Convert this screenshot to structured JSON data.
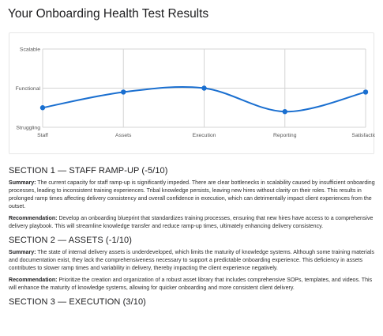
{
  "page": {
    "title": "Your Onboarding Health Test Results"
  },
  "colors": {
    "line": "#1a6fd0",
    "grid": "#d4d4d4",
    "axis_text": "#555555"
  },
  "chart_data": {
    "type": "line",
    "categories": [
      "Staff",
      "Assets",
      "Execution",
      "Reporting",
      "Satisfaction"
    ],
    "y_levels": [
      "Struggling",
      "Functional",
      "Scalable"
    ],
    "values": [
      0.5,
      0.9,
      1.0,
      0.4,
      0.9
    ],
    "ylim": [
      0,
      2
    ],
    "grid": true,
    "xlabel": "",
    "ylabel": "",
    "title": ""
  },
  "sections": [
    {
      "heading": "SECTION 1 — STAFF RAMP-UP (-5/10)",
      "summary_label": "Summary:",
      "summary": " The current capacity for staff ramp-up is significantly impeded. There are clear bottlenecks in scalability caused by insufficient onboarding processes, leading to inconsistent training experiences. Tribal knowledge persists, leaving new hires without clarity on their roles. This results in prolonged ramp times affecting delivery consistency and overall confidence in execution, which can detrimentally impact client experiences from the outset.",
      "rec_label": "Recommendation:",
      "recommendation": " Develop an onboarding blueprint that standardizes training processes, ensuring that new hires have access to a comprehensive delivery playbook. This will streamline knowledge transfer and reduce ramp-up times, ultimately enhancing delivery consistency."
    },
    {
      "heading": "SECTION 2 — ASSETS (-1/10)",
      "summary_label": "Summary:",
      "summary": " The state of internal delivery assets is underdeveloped, which limits the maturity of knowledge systems. Although some training materials and documentation exist, they lack the comprehensiveness necessary to support a predictable onboarding experience. This deficiency in assets contributes to slower ramp times and variability in delivery, thereby impacting the client experience negatively.",
      "rec_label": "Recommendation:",
      "recommendation": " Prioritize the creation and organization of a robust asset library that includes comprehensive SOPs, templates, and videos. This will enhance the maturity of knowledge systems, allowing for quicker onboarding and more consistent client delivery."
    },
    {
      "heading": "SECTION 3 — EXECUTION (3/10)"
    }
  ]
}
